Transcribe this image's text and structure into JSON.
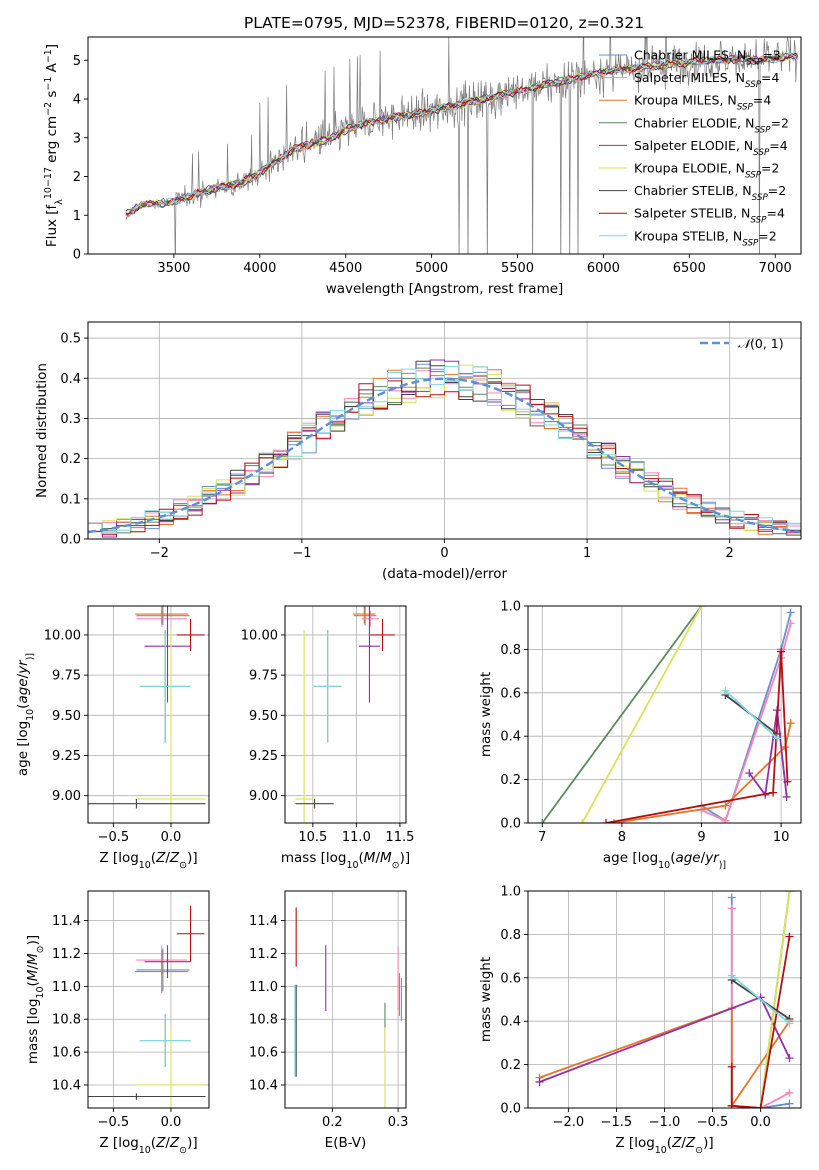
{
  "figure": {
    "title": "PLATE=0795, MJD=52378, FIBERID=0120, z=0.321",
    "colors": {
      "Chabrier MILES": "#6a8fd0",
      "Salpeter MILES": "#ff83b8",
      "Kroupa MILES": "#e8742a",
      "Chabrier ELODIE": "#5b8a60",
      "Salpeter ELODIE": "#9130a8",
      "Kroupa ELODIE": "#d8e35a",
      "Chabrier STELIB": "#444444",
      "Salpeter STELIB": "#b40f12",
      "Kroupa STELIB": "#7fd8e0",
      "data": "#7a7a7a"
    }
  },
  "chart_data": [
    {
      "id": "spectrum",
      "type": "line",
      "title": "PLATE=0795, MJD=52378, FIBERID=0120, z=0.321",
      "xlabel": "wavelength [Angstrom, rest frame]",
      "ylabel_parts": [
        "Flux [f",
        "λ",
        "10",
        "−17",
        " erg cm",
        "−2",
        " s",
        "−1",
        " A",
        "−1",
        "]"
      ],
      "xlim": [
        3000,
        7150
      ],
      "ylim": [
        0,
        5.6
      ],
      "xticks": [
        3500,
        4000,
        4500,
        5000,
        5500,
        6000,
        6500,
        7000
      ],
      "yticks": [
        0,
        1,
        2,
        3,
        4,
        5
      ],
      "grid": false,
      "legend_position": "top-right",
      "legend": [
        {
          "imf": "Chabrier",
          "lib": "MILES",
          "nssp": 3
        },
        {
          "imf": "Salpeter",
          "lib": "MILES",
          "nssp": 4
        },
        {
          "imf": "Kroupa",
          "lib": "MILES",
          "nssp": 4
        },
        {
          "imf": "Chabrier",
          "lib": "ELODIE",
          "nssp": 2
        },
        {
          "imf": "Salpeter",
          "lib": "ELODIE",
          "nssp": 4
        },
        {
          "imf": "Kroupa",
          "lib": "ELODIE",
          "nssp": 2
        },
        {
          "imf": "Chabrier",
          "lib": "STELIB",
          "nssp": 2
        },
        {
          "imf": "Salpeter",
          "lib": "STELIB",
          "nssp": 4
        },
        {
          "imf": "Kroupa",
          "lib": "STELIB",
          "nssp": 2
        }
      ],
      "continuum": {
        "x": [
          3220,
          3300,
          3400,
          3500,
          3600,
          3700,
          3800,
          3900,
          4000,
          4100,
          4200,
          4300,
          4400,
          4500,
          4600,
          4700,
          4800,
          4900,
          5000,
          5100,
          5200,
          5300,
          5400,
          5500,
          5600,
          5700,
          5800,
          5900,
          6000,
          6100,
          6200,
          6300,
          6400,
          6500,
          6600,
          6700,
          6800,
          6900,
          7000,
          7100
        ],
        "y": [
          1.0,
          1.25,
          1.3,
          1.35,
          1.5,
          1.65,
          1.75,
          1.85,
          2.1,
          2.4,
          2.7,
          2.85,
          2.95,
          3.2,
          3.35,
          3.45,
          3.55,
          3.6,
          3.7,
          3.8,
          3.9,
          4.0,
          4.1,
          4.2,
          4.3,
          4.4,
          4.5,
          4.6,
          4.7,
          4.75,
          4.8,
          4.85,
          4.9,
          4.95,
          5.0,
          5.0,
          5.05,
          5.0,
          5.05,
          5.1
        ]
      },
      "data_noise_level": 1.0
    },
    {
      "id": "residuals",
      "type": "histogram",
      "xlabel": "(data-model)/error",
      "ylabel": "Normed distribution",
      "xlim": [
        -2.5,
        2.5
      ],
      "ylim": [
        0,
        0.54
      ],
      "xticks": [
        -2,
        -1,
        0,
        1,
        2
      ],
      "yticks": [
        0.0,
        0.1,
        0.2,
        0.3,
        0.4,
        0.5
      ],
      "grid": true,
      "legend_position": "top-right",
      "reference_curve": {
        "name_parts": [
          "𝒩",
          "(0, 1)"
        ],
        "mu": 0,
        "sigma": 1
      },
      "bin_width": 0.1
    },
    {
      "id": "age-vs-Z",
      "type": "errorbar",
      "xlabel_parts": [
        "Z [log",
        "10",
        "(",
        "Z",
        "/",
        "Z",
        "⊙",
        ")]"
      ],
      "ylabel_parts": [
        "age  [log",
        "10",
        "(",
        "age",
        "/",
        "yr",
        ")]"
      ],
      "xlim": [
        -0.72,
        0.33
      ],
      "ylim": [
        8.83,
        10.18
      ],
      "xticks": [
        -0.5,
        0.0
      ],
      "yticks": [
        9.0,
        9.25,
        9.5,
        9.75,
        10.0
      ],
      "grid": true,
      "points": [
        {
          "model": "Chabrier MILES",
          "x": -0.07,
          "y": 10.12,
          "xerr": 0.23,
          "yerr": 0.06
        },
        {
          "model": "Salpeter MILES",
          "x": -0.08,
          "y": 10.1,
          "xerr": 0.22,
          "yerr": 0.05
        },
        {
          "model": "Kroupa MILES",
          "x": -0.08,
          "y": 10.13,
          "xerr": 0.23,
          "yerr": 0.06
        },
        {
          "model": "Chabrier ELODIE",
          "x": -0.05,
          "y": 9.68,
          "xerr": 0.22,
          "yerr": 0.35
        },
        {
          "model": "Salpeter ELODIE",
          "x": -0.03,
          "y": 9.93,
          "xerr": 0.2,
          "yerr": 0.35
        },
        {
          "model": "Kroupa ELODIE",
          "x": 0.0,
          "y": 8.98,
          "xerr": 0.3,
          "yerr": 1.05
        },
        {
          "model": "Chabrier STELIB",
          "x": -0.3,
          "y": 8.95,
          "xerr": 0.6,
          "yerr": 0.03
        },
        {
          "model": "Salpeter STELIB",
          "x": 0.17,
          "y": 10.0,
          "xerr": 0.12,
          "yerr": 0.1
        },
        {
          "model": "Kroupa STELIB",
          "x": -0.05,
          "y": 9.68,
          "xerr": 0.22,
          "yerr": 0.35
        }
      ]
    },
    {
      "id": "age-vs-mass",
      "type": "errorbar",
      "xlabel_parts": [
        "mass [log",
        "10",
        "(",
        "M",
        "/",
        "M",
        "⊙",
        ")]"
      ],
      "xlim": [
        10.18,
        11.57
      ],
      "ylim": [
        8.83,
        10.18
      ],
      "xticks": [
        10.5,
        11.0,
        11.5
      ],
      "yticks": [
        9.0,
        9.25,
        9.5,
        9.75,
        10.0
      ],
      "grid": true,
      "points": [
        {
          "model": "Chabrier MILES",
          "x": 11.1,
          "y": 10.12,
          "xerr": 0.13,
          "yerr": 0.06
        },
        {
          "model": "Salpeter MILES",
          "x": 11.16,
          "y": 10.1,
          "xerr": 0.1,
          "yerr": 0.05
        },
        {
          "model": "Kroupa MILES",
          "x": 11.09,
          "y": 10.13,
          "xerr": 0.13,
          "yerr": 0.06
        },
        {
          "model": "Chabrier ELODIE",
          "x": 10.67,
          "y": 9.68,
          "xerr": 0.16,
          "yerr": 0.35
        },
        {
          "model": "Salpeter ELODIE",
          "x": 11.15,
          "y": 9.93,
          "xerr": 0.12,
          "yerr": 0.35
        },
        {
          "model": "Kroupa ELODIE",
          "x": 10.4,
          "y": 8.98,
          "xerr": 0.1,
          "yerr": 1.05
        },
        {
          "model": "Chabrier STELIB",
          "x": 10.52,
          "y": 8.95,
          "xerr": 0.22,
          "yerr": 0.03
        },
        {
          "model": "Salpeter STELIB",
          "x": 11.3,
          "y": 10.0,
          "xerr": 0.14,
          "yerr": 0.1
        },
        {
          "model": "Kroupa STELIB",
          "x": 10.67,
          "y": 9.68,
          "xerr": 0.16,
          "yerr": 0.35
        }
      ]
    },
    {
      "id": "mass-weight-vs-age",
      "type": "line",
      "xlabel_parts": [
        "age  [log",
        "10",
        "(",
        "age",
        "/",
        "yr",
        ")]"
      ],
      "ylabel": "mass weight",
      "xlim": [
        6.82,
        10.25
      ],
      "ylim": [
        0,
        1.0
      ],
      "xticks": [
        7,
        8,
        9,
        10
      ],
      "yticks": [
        0.0,
        0.2,
        0.4,
        0.6,
        0.8,
        1.0
      ],
      "grid": true,
      "series": [
        {
          "model": "Chabrier MILES",
          "x": [
            9.0,
            9.3,
            10.0,
            10.12
          ],
          "y": [
            0.08,
            0.01,
            0.8,
            0.97
          ]
        },
        {
          "model": "Salpeter MILES",
          "x": [
            9.0,
            9.3,
            10.0,
            10.12
          ],
          "y": [
            0.06,
            0.01,
            0.76,
            0.92
          ]
        },
        {
          "model": "Kroupa MILES",
          "x": [
            7.9,
            9.3,
            10.05,
            10.12
          ],
          "y": [
            0.0,
            0.08,
            0.35,
            0.46
          ]
        },
        {
          "model": "Chabrier ELODIE",
          "x": [
            7.0,
            9.0
          ],
          "y": [
            0.0,
            1.0
          ]
        },
        {
          "model": "Salpeter ELODIE",
          "x": [
            9.6,
            9.8,
            9.95,
            10.07
          ],
          "y": [
            0.23,
            0.13,
            0.52,
            0.12
          ]
        },
        {
          "model": "Kroupa ELODIE",
          "x": [
            7.5,
            9.0
          ],
          "y": [
            0.0,
            1.0
          ]
        },
        {
          "model": "Chabrier STELIB",
          "x": [
            9.3,
            9.95
          ],
          "y": [
            0.59,
            0.41
          ]
        },
        {
          "model": "Salpeter STELIB",
          "x": [
            7.8,
            9.9,
            10.0,
            10.08
          ],
          "y": [
            0.0,
            0.14,
            0.79,
            0.19
          ]
        },
        {
          "model": "Kroupa STELIB",
          "x": [
            9.3,
            9.95
          ],
          "y": [
            0.61,
            0.39
          ]
        }
      ]
    },
    {
      "id": "mass-vs-Z",
      "type": "errorbar",
      "xlabel_parts": [
        "Z [log",
        "10",
        "(",
        "Z",
        "/",
        "Z",
        "⊙",
        ")]"
      ],
      "ylabel_parts": [
        "mass [log",
        "10",
        "(",
        "M",
        "/",
        "M",
        "⊙",
        ")]"
      ],
      "xlim": [
        -0.72,
        0.33
      ],
      "ylim": [
        10.26,
        11.58
      ],
      "xticks": [
        -0.5,
        0.0
      ],
      "yticks": [
        10.4,
        10.6,
        10.8,
        11.0,
        11.2,
        11.4
      ],
      "grid": true,
      "points": [
        {
          "model": "Chabrier MILES",
          "x": -0.07,
          "y": 11.1,
          "xerr": 0.23,
          "yerr": 0.13
        },
        {
          "model": "Salpeter MILES",
          "x": -0.08,
          "y": 11.16,
          "xerr": 0.22,
          "yerr": 0.09
        },
        {
          "model": "Kroupa MILES",
          "x": -0.08,
          "y": 11.09,
          "xerr": 0.23,
          "yerr": 0.13
        },
        {
          "model": "Chabrier ELODIE",
          "x": -0.05,
          "y": 10.67,
          "xerr": 0.22,
          "yerr": 0.16
        },
        {
          "model": "Salpeter ELODIE",
          "x": -0.03,
          "y": 11.15,
          "xerr": 0.2,
          "yerr": 0.1
        },
        {
          "model": "Kroupa ELODIE",
          "x": 0.0,
          "y": 10.4,
          "xerr": 0.3,
          "yerr": 0.35
        },
        {
          "model": "Chabrier STELIB",
          "x": -0.3,
          "y": 10.33,
          "xerr": 0.6,
          "yerr": 0.02
        },
        {
          "model": "Salpeter STELIB",
          "x": 0.17,
          "y": 11.32,
          "xerr": 0.12,
          "yerr": 0.17
        },
        {
          "model": "Kroupa STELIB",
          "x": -0.05,
          "y": 10.67,
          "xerr": 0.22,
          "yerr": 0.16
        }
      ]
    },
    {
      "id": "mass-vs-EBV",
      "type": "errorbar",
      "xlabel": "E(B-V)",
      "xlim": [
        0.128,
        0.312
      ],
      "ylim": [
        10.26,
        11.58
      ],
      "xticks": [
        0.2,
        0.3
      ],
      "yticks": [
        10.4,
        10.6,
        10.8,
        11.0,
        11.2,
        11.4
      ],
      "grid": true,
      "points": [
        {
          "model": "Chabrier MILES",
          "x": 0.305,
          "y": 10.92,
          "yerr": 0.13
        },
        {
          "model": "Salpeter MILES",
          "x": 0.3,
          "y": 11.05,
          "yerr": 0.19
        },
        {
          "model": "Kroupa MILES",
          "x": 0.302,
          "y": 10.95,
          "yerr": 0.13
        },
        {
          "model": "Chabrier ELODIE",
          "x": 0.28,
          "y": 10.75,
          "yerr": 0.15
        },
        {
          "model": "Salpeter ELODIE",
          "x": 0.19,
          "y": 11.05,
          "yerr": 0.2
        },
        {
          "model": "Kroupa ELODIE",
          "x": 0.28,
          "y": 10.5,
          "yerr": 0.25
        },
        {
          "model": "Chabrier STELIB",
          "x": 0.145,
          "y": 10.73,
          "yerr": 0.28
        },
        {
          "model": "Salpeter STELIB",
          "x": 0.145,
          "y": 11.3,
          "yerr": 0.18
        },
        {
          "model": "Kroupa STELIB",
          "x": 0.143,
          "y": 10.73,
          "yerr": 0.28
        }
      ]
    },
    {
      "id": "mass-weight-vs-Z",
      "type": "line",
      "xlabel_parts": [
        "Z [log",
        "10",
        "(",
        "Z",
        "/",
        "Z",
        "⊙",
        ")]"
      ],
      "ylabel": "mass weight",
      "xlim": [
        -2.42,
        0.42
      ],
      "ylim": [
        0,
        1.0
      ],
      "xticks": [
        -2.0,
        -1.5,
        -1.0,
        -0.5,
        0.0
      ],
      "yticks": [
        0.0,
        0.2,
        0.4,
        0.6,
        0.8,
        1.0
      ],
      "grid": true,
      "series": [
        {
          "model": "Chabrier MILES",
          "x": [
            -0.3,
            -0.3,
            0.0,
            0.3
          ],
          "y": [
            0.97,
            0.01,
            0.0,
            0.02
          ]
        },
        {
          "model": "Salpeter MILES",
          "x": [
            -0.3,
            -0.3,
            0.0,
            0.3
          ],
          "y": [
            0.92,
            0.01,
            0.0,
            0.07
          ]
        },
        {
          "model": "Kroupa MILES",
          "x": [
            -2.3,
            -0.3,
            -0.3,
            0.3
          ],
          "y": [
            0.14,
            0.46,
            0.01,
            0.4
          ]
        },
        {
          "model": "Chabrier ELODIE",
          "x": [
            0.0,
            0.3
          ],
          "y": [
            0.0,
            1.0
          ]
        },
        {
          "model": "Salpeter ELODIE",
          "x": [
            -2.3,
            0.0,
            0.3
          ],
          "y": [
            0.12,
            0.51,
            0.23
          ]
        },
        {
          "model": "Kroupa ELODIE",
          "x": [
            0.0,
            0.3
          ],
          "y": [
            0.0,
            1.0
          ]
        },
        {
          "model": "Chabrier STELIB",
          "x": [
            -0.3,
            0.3
          ],
          "y": [
            0.59,
            0.41
          ]
        },
        {
          "model": "Salpeter STELIB",
          "x": [
            -0.3,
            -0.3,
            0.0,
            0.3
          ],
          "y": [
            0.19,
            0.01,
            0.0,
            0.79
          ]
        },
        {
          "model": "Kroupa STELIB",
          "x": [
            -0.3,
            0.3
          ],
          "y": [
            0.61,
            0.39
          ]
        }
      ]
    }
  ]
}
